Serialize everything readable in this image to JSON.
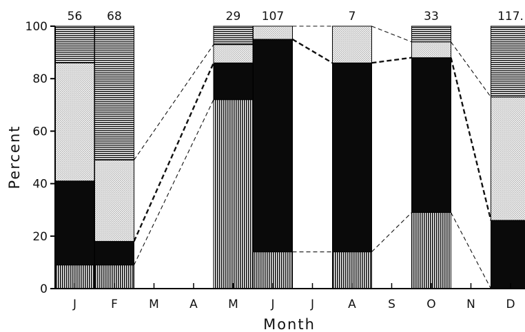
{
  "chart_data": {
    "type": "bar",
    "stacked": true,
    "xlabel": "Month",
    "ylabel": "Percent",
    "ylim": [
      0,
      100
    ],
    "yticks": [
      0,
      20,
      40,
      60,
      80,
      100
    ],
    "categories": [
      "J",
      "F",
      "M",
      "A",
      "M",
      "J",
      "J",
      "A",
      "S",
      "O",
      "N",
      "D"
    ],
    "sample_counts": [
      "56",
      "68",
      "",
      "",
      "29",
      "107",
      "",
      "7",
      "",
      "33",
      "",
      "117."
    ],
    "series": [
      {
        "pattern": "vertical-lines",
        "values": [
          9,
          9,
          null,
          null,
          72,
          14,
          null,
          14,
          null,
          29,
          null,
          0
        ]
      },
      {
        "pattern": "solid-black",
        "values": [
          32,
          9,
          null,
          null,
          14,
          81,
          null,
          72,
          null,
          59,
          null,
          26
        ]
      },
      {
        "pattern": "dotted",
        "values": [
          45,
          31,
          null,
          null,
          7,
          5,
          null,
          14,
          null,
          6,
          null,
          47
        ]
      },
      {
        "pattern": "horizontal-lines",
        "values": [
          14,
          51,
          null,
          null,
          7,
          0,
          null,
          0,
          null,
          6,
          null,
          27
        ]
      }
    ],
    "grid": false,
    "legend": "none"
  }
}
